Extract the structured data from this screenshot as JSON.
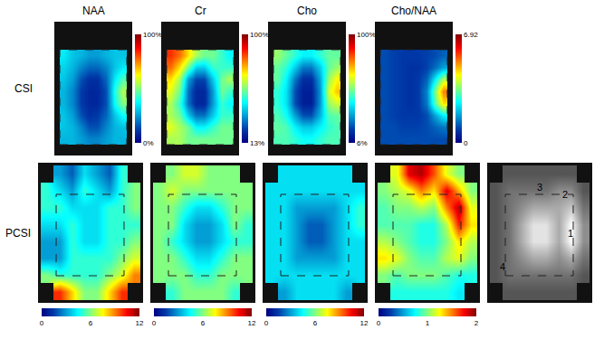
{
  "chart_data": [
    {
      "type": "heatmap",
      "title": "NAA",
      "ylabel": "CSI",
      "color": "jet",
      "tick_labels": false,
      "zlim": [
        0,
        100
      ],
      "zticks": [
        {
          "value": 0,
          "label": "0%"
        },
        {
          "value": 100,
          "label": "100%"
        }
      ],
      "z": [
        [
          35,
          30,
          28,
          25,
          25,
          28,
          30,
          30
        ],
        [
          32,
          28,
          22,
          18,
          18,
          22,
          30,
          35
        ],
        [
          30,
          25,
          15,
          10,
          10,
          18,
          35,
          45
        ],
        [
          28,
          22,
          12,
          8,
          8,
          15,
          40,
          55
        ],
        [
          28,
          22,
          12,
          8,
          8,
          15,
          38,
          50
        ],
        [
          30,
          25,
          15,
          10,
          12,
          18,
          30,
          38
        ],
        [
          30,
          28,
          22,
          15,
          15,
          22,
          28,
          30
        ],
        [
          28,
          28,
          25,
          22,
          22,
          25,
          28,
          28
        ]
      ]
    },
    {
      "type": "heatmap",
      "title": "Cr",
      "color": "jet",
      "tick_labels": false,
      "zlim": [
        13,
        100
      ],
      "zticks": [
        {
          "value": 13,
          "label": "13%"
        },
        {
          "value": 100,
          "label": "100%"
        }
      ],
      "z": [
        [
          85,
          80,
          70,
          60,
          55,
          55,
          50,
          45
        ],
        [
          80,
          70,
          55,
          40,
          40,
          50,
          50,
          50
        ],
        [
          70,
          60,
          35,
          25,
          25,
          40,
          55,
          60
        ],
        [
          65,
          55,
          30,
          20,
          20,
          35,
          55,
          50
        ],
        [
          60,
          50,
          30,
          20,
          20,
          35,
          50,
          45
        ],
        [
          60,
          55,
          40,
          30,
          30,
          40,
          50,
          50
        ],
        [
          65,
          60,
          55,
          45,
          45,
          50,
          55,
          55
        ],
        [
          60,
          60,
          55,
          55,
          55,
          55,
          55,
          55
        ]
      ]
    },
    {
      "type": "heatmap",
      "title": "Cho",
      "color": "jet",
      "tick_labels": false,
      "zlim": [
        6,
        100
      ],
      "zticks": [
        {
          "value": 6,
          "label": "6%"
        },
        {
          "value": 100,
          "label": "100%"
        }
      ],
      "z": [
        [
          55,
          50,
          45,
          40,
          40,
          45,
          50,
          50
        ],
        [
          50,
          45,
          35,
          25,
          25,
          35,
          50,
          55
        ],
        [
          50,
          40,
          25,
          15,
          15,
          30,
          55,
          65
        ],
        [
          45,
          38,
          20,
          12,
          12,
          28,
          60,
          70
        ],
        [
          45,
          38,
          20,
          12,
          12,
          28,
          55,
          60
        ],
        [
          48,
          42,
          30,
          20,
          20,
          32,
          48,
          50
        ],
        [
          50,
          48,
          40,
          35,
          35,
          40,
          45,
          48
        ],
        [
          48,
          48,
          45,
          42,
          42,
          45,
          48,
          48
        ]
      ]
    },
    {
      "type": "heatmap",
      "title": "Cho/NAA",
      "color": "jet",
      "tick_labels": false,
      "zlim": [
        0,
        6.92
      ],
      "zticks": [
        0,
        6.92
      ],
      "z": [
        [
          1.0,
          0.9,
          0.8,
          0.8,
          0.8,
          0.9,
          1.0,
          1.2
        ],
        [
          1.0,
          0.9,
          0.8,
          0.7,
          0.7,
          0.9,
          1.3,
          1.8
        ],
        [
          1.0,
          0.9,
          0.8,
          0.7,
          0.8,
          1.2,
          2.5,
          3.8
        ],
        [
          1.0,
          0.9,
          0.8,
          0.7,
          0.8,
          1.5,
          3.5,
          5.2
        ],
        [
          1.0,
          0.9,
          0.8,
          0.7,
          0.8,
          1.4,
          3.2,
          4.5
        ],
        [
          1.0,
          0.9,
          0.8,
          0.8,
          0.8,
          1.0,
          1.8,
          2.5
        ],
        [
          1.0,
          1.0,
          0.9,
          0.9,
          0.9,
          1.0,
          1.2,
          1.4
        ],
        [
          1.0,
          1.0,
          1.0,
          1.0,
          1.0,
          1.0,
          1.0,
          1.0
        ]
      ]
    },
    {
      "type": "heatmap",
      "ylabel": "PCSI",
      "color": "jet",
      "tick_labels": false,
      "zlim": [
        0,
        12
      ],
      "zticks": [
        0,
        6,
        12
      ],
      "z": [
        [
          null,
          3,
          2,
          4,
          3,
          2,
          5,
          null
        ],
        [
          5,
          4,
          3,
          5,
          4,
          3,
          5,
          6
        ],
        [
          5,
          5,
          4,
          4,
          4,
          5,
          5,
          6
        ],
        [
          4,
          4,
          5,
          4,
          4,
          5,
          5,
          5
        ],
        [
          3,
          3,
          5,
          4,
          4,
          5,
          5,
          6
        ],
        [
          3,
          3,
          5,
          5,
          5,
          5,
          6,
          7
        ],
        [
          6,
          5,
          5,
          5,
          5,
          6,
          7,
          9
        ],
        [
          null,
          10,
          8,
          6,
          6,
          8,
          10,
          null
        ]
      ]
    },
    {
      "type": "heatmap",
      "color": "jet",
      "tick_labels": false,
      "zlim": [
        0,
        12
      ],
      "zticks": [
        0,
        6,
        12
      ],
      "z": [
        [
          null,
          6,
          7,
          7,
          6,
          6,
          6,
          null
        ],
        [
          6,
          7,
          6,
          6,
          6,
          6,
          6,
          6
        ],
        [
          6,
          6,
          5,
          4,
          4,
          5,
          6,
          6
        ],
        [
          6,
          6,
          4,
          3,
          3,
          4,
          6,
          5
        ],
        [
          6,
          5,
          4,
          3,
          3,
          4,
          5,
          5
        ],
        [
          6,
          6,
          5,
          4,
          4,
          5,
          6,
          6
        ],
        [
          6,
          6,
          6,
          5,
          5,
          6,
          6,
          6
        ],
        [
          null,
          5,
          6,
          6,
          6,
          6,
          5,
          null
        ]
      ]
    },
    {
      "type": "heatmap",
      "color": "jet",
      "tick_labels": false,
      "zlim": [
        0,
        12
      ],
      "zticks": [
        0,
        6,
        12
      ],
      "z": [
        [
          null,
          4,
          4,
          4,
          4,
          4,
          4,
          null
        ],
        [
          4,
          4,
          4,
          4,
          4,
          4,
          4,
          4
        ],
        [
          4,
          4,
          3,
          3,
          3,
          3,
          4,
          5
        ],
        [
          4,
          4,
          3,
          2,
          2,
          3,
          4,
          5
        ],
        [
          4,
          4,
          3,
          2,
          2,
          3,
          4,
          4
        ],
        [
          4,
          4,
          3,
          3,
          3,
          3,
          4,
          4
        ],
        [
          4,
          4,
          4,
          4,
          4,
          4,
          4,
          4
        ],
        [
          null,
          3,
          4,
          4,
          4,
          4,
          3,
          null
        ]
      ]
    },
    {
      "type": "heatmap",
      "color": "jet",
      "tick_labels": false,
      "zlim": [
        0,
        2
      ],
      "zticks": [
        0,
        1,
        2
      ],
      "z": [
        [
          null,
          1.2,
          1.8,
          1.9,
          1.6,
          1.2,
          1.0,
          null
        ],
        [
          1.0,
          1.1,
          1.2,
          1.5,
          1.3,
          1.8,
          1.4,
          1.0
        ],
        [
          0.9,
          1.0,
          1.0,
          1.1,
          1.0,
          1.5,
          1.9,
          1.2
        ],
        [
          0.9,
          0.9,
          0.9,
          0.8,
          0.8,
          1.1,
          1.7,
          1.3
        ],
        [
          1.1,
          1.0,
          0.9,
          0.8,
          0.8,
          1.0,
          1.3,
          1.1
        ],
        [
          1.3,
          1.2,
          1.0,
          0.9,
          0.9,
          1.1,
          1.2,
          1.0
        ],
        [
          1.0,
          0.9,
          1.0,
          1.0,
          1.0,
          0.9,
          0.8,
          0.8
        ],
        [
          null,
          0.8,
          0.8,
          0.8,
          0.8,
          0.8,
          0.7,
          null
        ]
      ]
    },
    {
      "type": "heatmap",
      "color": "gray",
      "tick_labels": false,
      "zlim": [
        0,
        9
      ],
      "z": [
        [
          null,
          3,
          3,
          3,
          3,
          3,
          3,
          null
        ],
        [
          3,
          4,
          4,
          4,
          4,
          5,
          5,
          3
        ],
        [
          3,
          4,
          5,
          6,
          6,
          6,
          7,
          4
        ],
        [
          3,
          4,
          6,
          8,
          8,
          6,
          9,
          5
        ],
        [
          3,
          4,
          6,
          8,
          8,
          6,
          9,
          5
        ],
        [
          3,
          4,
          5,
          6,
          6,
          5,
          6,
          4
        ],
        [
          3,
          4,
          4,
          4,
          4,
          4,
          4,
          3
        ],
        [
          null,
          3,
          3,
          3,
          3,
          3,
          3,
          null
        ]
      ],
      "annotations": [
        {
          "text": "1",
          "x": 6,
          "y": 3.5
        },
        {
          "text": "2",
          "x": 5.5,
          "y": 1.2
        },
        {
          "text": "3",
          "x": 3.5,
          "y": 0.8
        },
        {
          "text": "4",
          "x": 0.5,
          "y": 5.5
        }
      ]
    }
  ]
}
